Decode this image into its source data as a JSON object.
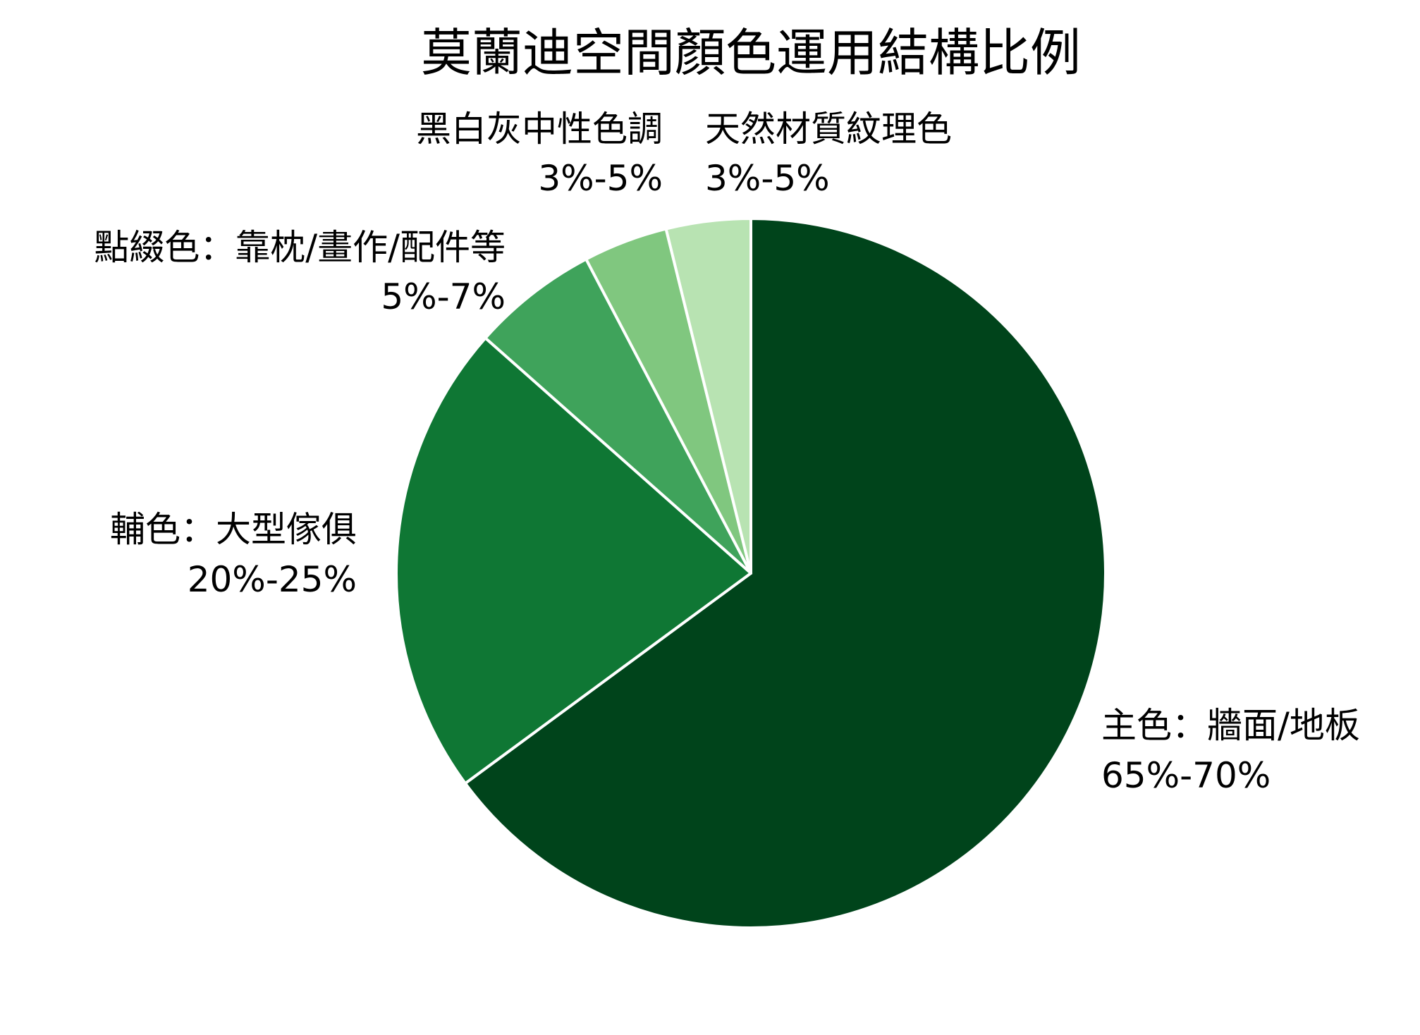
{
  "chart_data": {
    "type": "pie",
    "title": "莫蘭迪空間顏色運用結構比例",
    "start_angle_deg": 90,
    "direction": "clockwise",
    "slices": [
      {
        "label": "主色：牆面/地板",
        "value_text": "65%-70%",
        "value": 67.5,
        "color": "#00441b"
      },
      {
        "label": "輔色：大型傢俱",
        "value_text": "20%-25%",
        "value": 22.5,
        "color": "#0f7734"
      },
      {
        "label": "點綴色：靠枕/畫作/配件等",
        "value_text": "5%-7%",
        "value": 6,
        "color": "#3fa35b"
      },
      {
        "label": "黑白灰中性色調",
        "value_text": "3%-5%",
        "value": 4,
        "color": "#80c77f"
      },
      {
        "label": "天然材質紋理色",
        "value_text": "3%-5%",
        "value": 4,
        "color": "#b8e3b2"
      }
    ],
    "edge_color": "#ffffff"
  }
}
